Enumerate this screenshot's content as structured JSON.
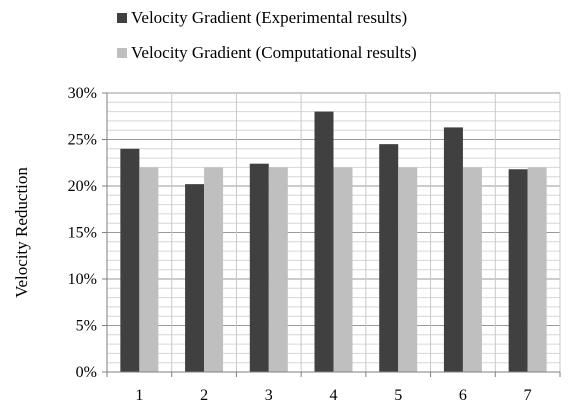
{
  "chart_data": {
    "type": "bar",
    "title": "",
    "xlabel": "",
    "ylabel": "Velocity Reduction",
    "categories": [
      "1",
      "2",
      "3",
      "4",
      "5",
      "6",
      "7"
    ],
    "series": [
      {
        "name": "Velocity Gradient (Experimental results)",
        "color": "#404040",
        "values": [
          0.24,
          0.202,
          0.224,
          0.28,
          0.245,
          0.263,
          0.218
        ]
      },
      {
        "name": "Velocity Gradient (Computational results)",
        "color": "#bfbfbf",
        "values": [
          0.22,
          0.22,
          0.22,
          0.22,
          0.22,
          0.22,
          0.22
        ]
      }
    ],
    "ylim": [
      0,
      0.3
    ],
    "yticks": [
      0,
      0.05,
      0.1,
      0.15,
      0.2,
      0.25,
      0.3
    ],
    "ytick_labels": [
      "0%",
      "5%",
      "10%",
      "15%",
      "20%",
      "25%",
      "30%"
    ],
    "grid": {
      "horizontal_major": true,
      "horizontal_minor": true,
      "vertical": true
    },
    "legend_position": "top"
  }
}
